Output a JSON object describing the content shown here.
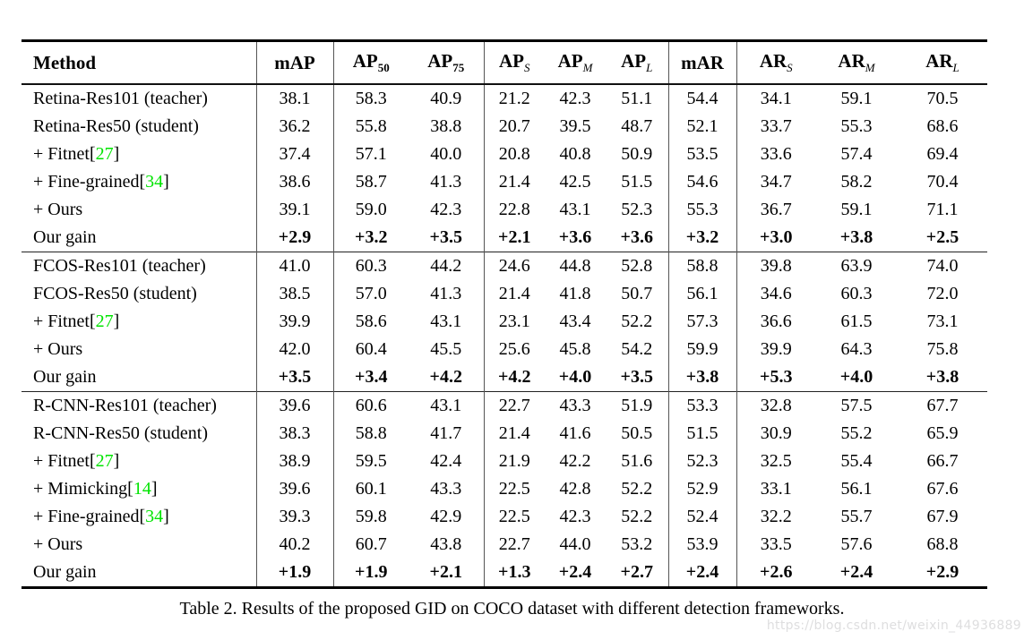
{
  "caption": "Table 2. Results of the proposed GID on COCO dataset with different detection frameworks.",
  "watermark": "https://blog.csdn.net/weixin_44936889",
  "ref_brackets": {
    "open": "[",
    "close": "]"
  },
  "colors": {
    "reference_green": "#00E400",
    "watermark_gray": "#DEDEDF",
    "rule_black": "#000000",
    "divider_gray": "#555555"
  },
  "table": {
    "header": [
      {
        "text": "Method",
        "sub": "",
        "italic_sub": false
      },
      {
        "text": "mAP",
        "sub": "",
        "italic_sub": false
      },
      {
        "text": "AP",
        "sub": "50",
        "italic_sub": false
      },
      {
        "text": "AP",
        "sub": "75",
        "italic_sub": false
      },
      {
        "text": "AP",
        "sub": "S",
        "italic_sub": true
      },
      {
        "text": "AP",
        "sub": "M",
        "italic_sub": true
      },
      {
        "text": "AP",
        "sub": "L",
        "italic_sub": true
      },
      {
        "text": "mAR",
        "sub": "",
        "italic_sub": false
      },
      {
        "text": "AR",
        "sub": "S",
        "italic_sub": true
      },
      {
        "text": "AR",
        "sub": "M",
        "italic_sub": true
      },
      {
        "text": "AR",
        "sub": "L",
        "italic_sub": true
      }
    ],
    "groups": [
      {
        "name": "retina",
        "rows": [
          {
            "method": "Retina-Res101 (teacher)",
            "ref": "",
            "gain": false,
            "values": [
              "38.1",
              "58.3",
              "40.9",
              "21.2",
              "42.3",
              "51.1",
              "54.4",
              "34.1",
              "59.1",
              "70.5"
            ]
          },
          {
            "method": "Retina-Res50 (student)",
            "ref": "",
            "gain": false,
            "values": [
              "36.2",
              "55.8",
              "38.8",
              "20.7",
              "39.5",
              "48.7",
              "52.1",
              "33.7",
              "55.3",
              "68.6"
            ]
          },
          {
            "method": "+ Fitnet",
            "ref": "27",
            "gain": false,
            "values": [
              "37.4",
              "57.1",
              "40.0",
              "20.8",
              "40.8",
              "50.9",
              "53.5",
              "33.6",
              "57.4",
              "69.4"
            ]
          },
          {
            "method": "+ Fine-grained",
            "ref": "34",
            "gain": false,
            "values": [
              "38.6",
              "58.7",
              "41.3",
              "21.4",
              "42.5",
              "51.5",
              "54.6",
              "34.7",
              "58.2",
              "70.4"
            ]
          },
          {
            "method": "+ Ours",
            "ref": "",
            "gain": false,
            "values": [
              "39.1",
              "59.0",
              "42.3",
              "22.8",
              "43.1",
              "52.3",
              "55.3",
              "36.7",
              "59.1",
              "71.1"
            ]
          },
          {
            "method": "Our gain",
            "ref": "",
            "gain": true,
            "values": [
              "+2.9",
              "+3.2",
              "+3.5",
              "+2.1",
              "+3.6",
              "+3.6",
              "+3.2",
              "+3.0",
              "+3.8",
              "+2.5"
            ]
          }
        ]
      },
      {
        "name": "fcos",
        "rows": [
          {
            "method": "FCOS-Res101 (teacher)",
            "ref": "",
            "gain": false,
            "values": [
              "41.0",
              "60.3",
              "44.2",
              "24.6",
              "44.8",
              "52.8",
              "58.8",
              "39.8",
              "63.9",
              "74.0"
            ]
          },
          {
            "method": "FCOS-Res50 (student)",
            "ref": "",
            "gain": false,
            "values": [
              "38.5",
              "57.0",
              "41.3",
              "21.4",
              "41.8",
              "50.7",
              "56.1",
              "34.6",
              "60.3",
              "72.0"
            ]
          },
          {
            "method": "+ Fitnet",
            "ref": "27",
            "gain": false,
            "values": [
              "39.9",
              "58.6",
              "43.1",
              "23.1",
              "43.4",
              "52.2",
              "57.3",
              "36.6",
              "61.5",
              "73.1"
            ]
          },
          {
            "method": "+ Ours",
            "ref": "",
            "gain": false,
            "values": [
              "42.0",
              "60.4",
              "45.5",
              "25.6",
              "45.8",
              "54.2",
              "59.9",
              "39.9",
              "64.3",
              "75.8"
            ]
          },
          {
            "method": "Our gain",
            "ref": "",
            "gain": true,
            "values": [
              "+3.5",
              "+3.4",
              "+4.2",
              "+4.2",
              "+4.0",
              "+3.5",
              "+3.8",
              "+5.3",
              "+4.0",
              "+3.8"
            ]
          }
        ]
      },
      {
        "name": "rcnn",
        "rows": [
          {
            "method": "R-CNN-Res101 (teacher)",
            "ref": "",
            "gain": false,
            "values": [
              "39.6",
              "60.6",
              "43.1",
              "22.7",
              "43.3",
              "51.9",
              "53.3",
              "32.8",
              "57.5",
              "67.7"
            ]
          },
          {
            "method": "R-CNN-Res50 (student)",
            "ref": "",
            "gain": false,
            "values": [
              "38.3",
              "58.8",
              "41.7",
              "21.4",
              "41.6",
              "50.5",
              "51.5",
              "30.9",
              "55.2",
              "65.9"
            ]
          },
          {
            "method": "+ Fitnet",
            "ref": "27",
            "gain": false,
            "values": [
              "38.9",
              "59.5",
              "42.4",
              "21.9",
              "42.2",
              "51.6",
              "52.3",
              "32.5",
              "55.4",
              "66.7"
            ]
          },
          {
            "method": "+ Mimicking",
            "ref": "14",
            "gain": false,
            "values": [
              "39.6",
              "60.1",
              "43.3",
              "22.5",
              "42.8",
              "52.2",
              "52.9",
              "33.1",
              "56.1",
              "67.6"
            ]
          },
          {
            "method": "+ Fine-grained",
            "ref": "34",
            "gain": false,
            "values": [
              "39.3",
              "59.8",
              "42.9",
              "22.5",
              "42.3",
              "52.2",
              "52.4",
              "32.2",
              "55.7",
              "67.9"
            ]
          },
          {
            "method": "+ Ours",
            "ref": "",
            "gain": false,
            "values": [
              "40.2",
              "60.7",
              "43.8",
              "22.7",
              "44.0",
              "53.2",
              "53.9",
              "33.5",
              "57.6",
              "68.8"
            ]
          },
          {
            "method": "Our gain",
            "ref": "",
            "gain": true,
            "values": [
              "+1.9",
              "+1.9",
              "+2.1",
              "+1.3",
              "+2.4",
              "+2.7",
              "+2.4",
              "+2.6",
              "+2.4",
              "+2.9"
            ]
          }
        ]
      }
    ]
  }
}
